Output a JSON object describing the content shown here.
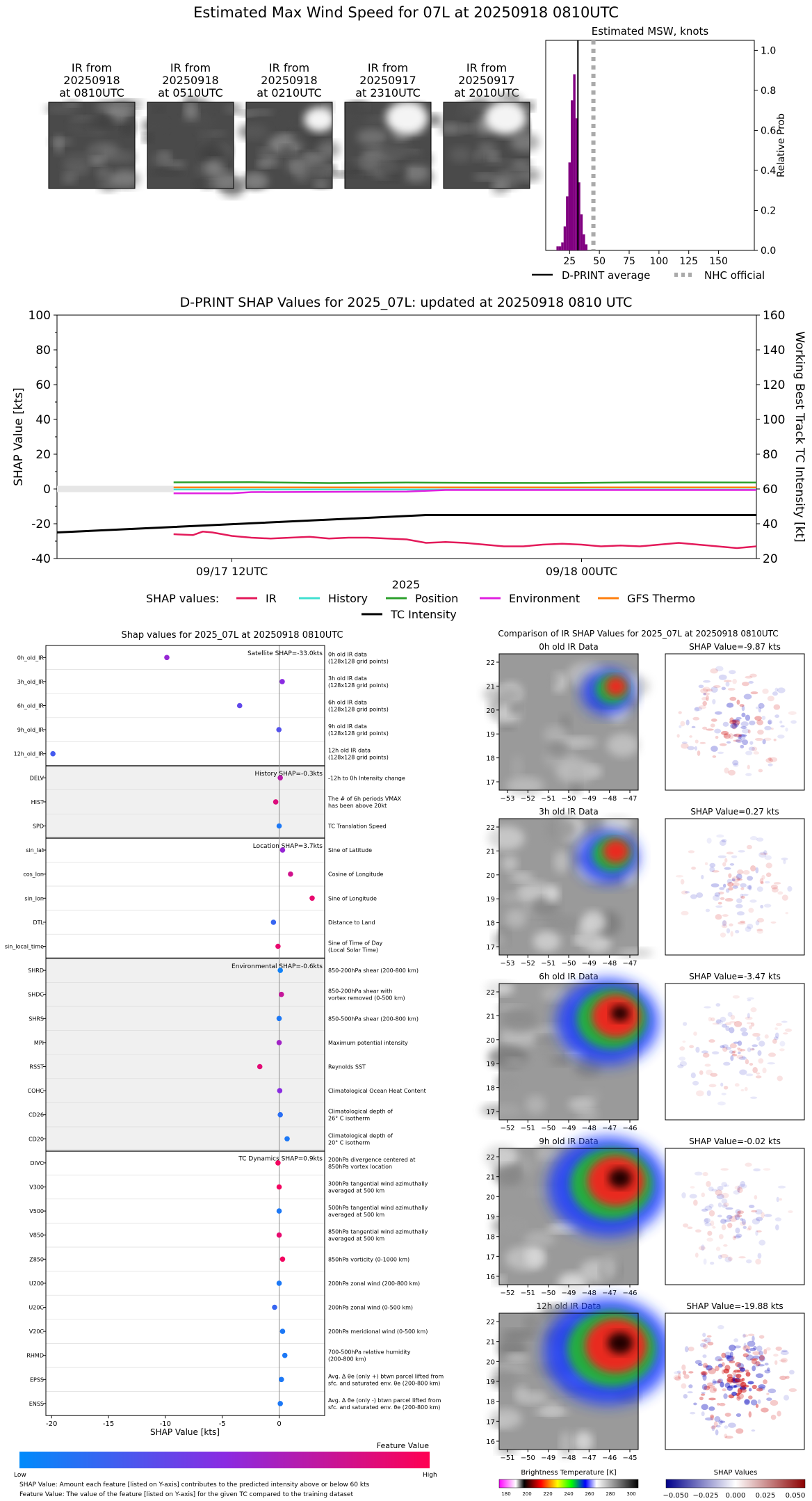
{
  "page_title": "Estimated Max Wind Speed for 07L at 20250918 0810UTC",
  "ir_thumbnails": [
    {
      "line1": "IR from",
      "line2": "20250918",
      "line3": "at 0810UTC"
    },
    {
      "line1": "IR from",
      "line2": "20250918",
      "line3": "at 0510UTC"
    },
    {
      "line1": "IR from",
      "line2": "20250918",
      "line3": "at 0210UTC"
    },
    {
      "line1": "IR from",
      "line2": "20250917",
      "line3": "at 2310UTC"
    },
    {
      "line1": "IR from",
      "line2": "20250917",
      "line3": "at 2010UTC"
    }
  ],
  "colors": {
    "msw_bar": "#800080",
    "nhc": "#aaaaaa",
    "ir": "#e31a5a",
    "history": "#40e0d0",
    "position": "#2ca02c",
    "environment": "#e020e0",
    "gfs_thermo": "#ff7f0e",
    "tc_intensity": "#000000",
    "low": "#1e90ff",
    "mid": "#8a2be2",
    "high": "#ff1060",
    "shade": "#f0f0f0"
  },
  "chart_data": [
    {
      "type": "bar",
      "title": "Estimated MSW, knots",
      "xlabel": "",
      "ylabel": "Relative Prob",
      "xlim": [
        5,
        180
      ],
      "ylim": [
        0,
        1.05
      ],
      "x_ticks": [
        "25",
        "50",
        "75",
        "100",
        "125",
        "150"
      ],
      "y_ticks": [
        "0.0",
        "0.2",
        "0.4",
        "0.6",
        "0.8",
        "1.0"
      ],
      "bins": [
        15,
        17,
        19,
        21,
        23,
        25,
        27,
        29,
        31,
        33,
        35,
        37,
        39
      ],
      "values": [
        0.02,
        0.02,
        0.04,
        0.12,
        0.27,
        0.44,
        0.75,
        0.88,
        0.66,
        0.34,
        0.18,
        0.08,
        0.03
      ],
      "dprint_average": 32,
      "nhc_official": 45,
      "legend": {
        "dprint": "D-PRINT average",
        "nhc": "NHC official"
      }
    },
    {
      "type": "line",
      "title": "D-PRINT SHAP Values for 2025_07L: updated at 20250918 0810 UTC",
      "xlabel": "2025",
      "ylabel": "SHAP Value [kts]",
      "ylabel_right": "Working Best Track TC Intensity [kt]",
      "x_hours": [
        0,
        36
      ],
      "ylim": [
        -40,
        100
      ],
      "ylim_right": [
        20,
        160
      ],
      "y_ticks": [
        "-40",
        "-20",
        "0",
        "20",
        "40",
        "60",
        "80",
        "100"
      ],
      "y_ticks_right": [
        "20",
        "40",
        "60",
        "80",
        "100",
        "120",
        "140",
        "160"
      ],
      "x_ticks": [
        {
          "label": "09/17 12UTC",
          "t": 9
        },
        {
          "label": "09/18 00UTC",
          "t": 27
        }
      ],
      "shap_start": 6,
      "legend_label": "SHAP values:",
      "series": [
        {
          "name": "IR",
          "x": [
            6,
            7,
            7.5,
            8,
            9,
            10,
            11,
            12,
            13,
            14,
            15,
            16,
            17,
            18,
            19,
            20,
            21,
            22,
            23,
            24,
            25,
            26,
            27,
            28,
            29,
            30,
            31,
            32,
            33,
            34,
            35,
            36
          ],
          "values": [
            -26,
            -26.5,
            -24.5,
            -25,
            -27,
            -28,
            -28.5,
            -28,
            -27.5,
            -28.5,
            -28,
            -28,
            -28.5,
            -29,
            -31,
            -30.5,
            -31,
            -32,
            -33,
            -33,
            -32,
            -31.5,
            -32,
            -33,
            -32.5,
            -33,
            -32,
            -31,
            -32,
            -33,
            -34,
            -33
          ]
        },
        {
          "name": "History",
          "x": [
            6,
            36
          ],
          "values": [
            -0.3,
            -0.3
          ]
        },
        {
          "name": "Position",
          "x": [
            6,
            10,
            14,
            18,
            22,
            26,
            30,
            36
          ],
          "values": [
            3.8,
            3.9,
            3.4,
            3.7,
            3.5,
            3.4,
            3.8,
            3.7
          ]
        },
        {
          "name": "Environment",
          "x": [
            6,
            9,
            10,
            18,
            20,
            36
          ],
          "values": [
            -2.5,
            -2.5,
            -1.8,
            -1.5,
            -0.6,
            -0.6
          ]
        },
        {
          "name": "GFS Thermo",
          "x": [
            6,
            36
          ],
          "values": [
            0.9,
            0.9
          ]
        },
        {
          "name": "TC Intensity",
          "axis": "right",
          "x": [
            0,
            19,
            36
          ],
          "values": [
            35,
            45,
            45
          ]
        }
      ]
    },
    {
      "type": "scatter",
      "title": "Shap values for 2025_07L at 20250918 0810UTC",
      "xlabel": "SHAP Value [kts]",
      "xlim": [
        -20.5,
        4
      ],
      "x_ticks": [
        "-20",
        "-15",
        "-10",
        "-5",
        "0"
      ],
      "groups": [
        {
          "label": "Satellite SHAP=-33.0kts",
          "start": 0,
          "count": 5,
          "shaded": false
        },
        {
          "label": "History SHAP=-0.3kts",
          "start": 5,
          "count": 3,
          "shaded": true
        },
        {
          "label": "Location SHAP=3.7kts",
          "start": 8,
          "count": 5,
          "shaded": false
        },
        {
          "label": "Environmental SHAP=-0.6kts",
          "start": 13,
          "count": 8,
          "shaded": true
        },
        {
          "label": "TC Dynamics SHAP=0.9kts",
          "start": 21,
          "count": 11,
          "shaded": false
        }
      ],
      "features": [
        {
          "name": "0h_old_IR",
          "desc1": "0h old IR data",
          "desc2": "(128x128 grid points)",
          "shap": -9.87,
          "fv": 0.55
        },
        {
          "name": "3h_old_IR",
          "desc1": "3h old IR data",
          "desc2": "(128x128 grid points)",
          "shap": 0.27,
          "fv": 0.5
        },
        {
          "name": "6h_old_IR",
          "desc1": "6h old IR data",
          "desc2": "(128x128 grid points)",
          "shap": -3.47,
          "fv": 0.35
        },
        {
          "name": "9h_old_IR",
          "desc1": "9h old IR data",
          "desc2": "(128x128 grid points)",
          "shap": -0.02,
          "fv": 0.3
        },
        {
          "name": "12h_old_IR",
          "desc1": "12h old IR data",
          "desc2": "(128x128 grid points)",
          "shap": -19.88,
          "fv": 0.25
        },
        {
          "name": "DELV",
          "desc1": "-12h to 0h Intensity change",
          "desc2": "",
          "shap": 0.1,
          "fv": 0.7
        },
        {
          "name": "HIST",
          "desc1": "The # of 6h periods VMAX",
          "desc2": "has been above 20kt",
          "shap": -0.3,
          "fv": 0.85
        },
        {
          "name": "SPD",
          "desc1": "TC Translation Speed",
          "desc2": "",
          "shap": 0.0,
          "fv": 0.1
        },
        {
          "name": "sin_lat",
          "desc1": "Sine of Latitude",
          "desc2": "",
          "shap": 0.3,
          "fv": 0.55
        },
        {
          "name": "cos_lon",
          "desc1": "Cosine of Longitude",
          "desc2": "",
          "shap": 1.0,
          "fv": 0.8
        },
        {
          "name": "sin_lon",
          "desc1": "Sine of Longitude",
          "desc2": "",
          "shap": 2.9,
          "fv": 0.9
        },
        {
          "name": "DTL",
          "desc1": "Distance to Land",
          "desc2": "",
          "shap": -0.5,
          "fv": 0.2
        },
        {
          "name": "sin_local_time",
          "desc1": "Sine of Time of Day",
          "desc2": "(Local Solar Time)",
          "shap": -0.1,
          "fv": 0.9
        },
        {
          "name": "SHRD",
          "desc1": "850-200hPa shear (200-800 km)",
          "desc2": "",
          "shap": 0.1,
          "fv": 0.05
        },
        {
          "name": "SHDC",
          "desc1": "850-200hPa shear with",
          "desc2": "vortex removed (0-500 km)",
          "shap": 0.2,
          "fv": 0.75
        },
        {
          "name": "SHRS",
          "desc1": "850-500hPa shear (200-800 km)",
          "desc2": "",
          "shap": 0.0,
          "fv": 0.1
        },
        {
          "name": "MPI",
          "desc1": "Maximum potential intensity",
          "desc2": "",
          "shap": 0.0,
          "fv": 0.6
        },
        {
          "name": "RSST",
          "desc1": "Reynolds SST",
          "desc2": "",
          "shap": -1.7,
          "fv": 0.88
        },
        {
          "name": "COHC",
          "desc1": "Climatological Ocean Heat Content",
          "desc2": "",
          "shap": 0.05,
          "fv": 0.5
        },
        {
          "name": "CD26",
          "desc1": "Climatological depth of",
          "desc2": "26° C isotherm",
          "shap": 0.1,
          "fv": 0.15
        },
        {
          "name": "CD20",
          "desc1": "Climatological depth of",
          "desc2": "20° C isotherm",
          "shap": 0.7,
          "fv": 0.1
        },
        {
          "name": "DIVC",
          "desc1": "200hPa divergence centered at",
          "desc2": "850hPa vortex location",
          "shap": -0.1,
          "fv": 0.95
        },
        {
          "name": "V300",
          "desc1": "300hPa tangential wind azimuthally",
          "desc2": "averaged at 500 km",
          "shap": 0.0,
          "fv": 0.95
        },
        {
          "name": "V500",
          "desc1": "500hPa tangential wind azimuthally",
          "desc2": "averaged at 500 km",
          "shap": 0.0,
          "fv": 0.1
        },
        {
          "name": "V850",
          "desc1": "850hPa tangential wind azimuthally",
          "desc2": "averaged at 500 km",
          "shap": 0.0,
          "fv": 0.9
        },
        {
          "name": "Z850",
          "desc1": "850hPa vorticity (0-1000 km)",
          "desc2": "",
          "shap": 0.3,
          "fv": 0.95
        },
        {
          "name": "U200",
          "desc1": "200hPa zonal wind (200-800 km)",
          "desc2": "",
          "shap": 0.0,
          "fv": 0.1
        },
        {
          "name": "U20C",
          "desc1": "200hPa zonal wind (0-500 km)",
          "desc2": "",
          "shap": -0.4,
          "fv": 0.2
        },
        {
          "name": "V20C",
          "desc1": "200hPa meridional wind (0-500 km)",
          "desc2": "",
          "shap": 0.3,
          "fv": 0.1
        },
        {
          "name": "RHMD",
          "desc1": "700-500hPa relative humidity",
          "desc2": "(200-800 km)",
          "shap": 0.5,
          "fv": 0.1
        },
        {
          "name": "EPSS",
          "desc1": "Avg. Δ θe (only +) btwn parcel lifted from",
          "desc2": "sfc. and saturated env. θe (200-800 km)",
          "shap": 0.2,
          "fv": 0.1
        },
        {
          "name": "ENSS",
          "desc1": "Avg. Δ θe (only -) btwn parcel lifted from",
          "desc2": "sfc. and saturated env. θe (200-800 km)",
          "shap": 0.1,
          "fv": 0.1
        }
      ],
      "colorbar": {
        "title": "Feature Value",
        "low": "Low",
        "high": "High"
      },
      "footnotes": [
        "SHAP Value: Amount each feature [listed on Y-axis] contributes to the predicted intensity above or below 60 kts",
        "Feature Value: The value of the feature [listed on Y-axis] for the given TC compared to the training dataset"
      ]
    },
    {
      "type": "heatmap",
      "title": "Comparison of IR SHAP Values for 2025_07L at 20250918 0810UTC",
      "rows": [
        {
          "ir_title": "0h old IR Data",
          "shap_title": "SHAP Value=-9.87 kts",
          "lon": [
            "−53",
            "−52",
            "−51",
            "−50",
            "−49",
            "−48",
            "−47"
          ],
          "lat": [
            "22",
            "21",
            "20",
            "19",
            "18",
            "17"
          ],
          "cold_cloud": 0.15,
          "shap_intensity": 0.55
        },
        {
          "ir_title": "3h old IR Data",
          "shap_title": "SHAP Value=0.27 kts",
          "lon": [
            "−53",
            "−52",
            "−51",
            "−50",
            "−49",
            "−48",
            "−47"
          ],
          "lat": [
            "22",
            "21",
            "20",
            "19",
            "18",
            "17"
          ],
          "cold_cloud": 0.2,
          "shap_intensity": 0.35
        },
        {
          "ir_title": "6h old IR Data",
          "shap_title": "SHAP Value=-3.47 kts",
          "lon": [
            "−52",
            "−51",
            "−50",
            "−49",
            "−48",
            "−47",
            "−46"
          ],
          "lat": [
            "22",
            "21",
            "20",
            "19",
            "18",
            "17"
          ],
          "cold_cloud": 0.45,
          "shap_intensity": 0.35
        },
        {
          "ir_title": "9h old IR Data",
          "shap_title": "SHAP Value=-0.02 kts",
          "lon": [
            "−52",
            "−51",
            "−50",
            "−49",
            "−48",
            "−47",
            "−46"
          ],
          "lat": [
            "22",
            "21",
            "20",
            "19",
            "18",
            "17",
            "16"
          ],
          "cold_cloud": 0.55,
          "shap_intensity": 0.3
        },
        {
          "ir_title": "12h old IR Data",
          "shap_title": "SHAP Value=-19.88 kts",
          "lon": [
            "−51",
            "−50",
            "−49",
            "−48",
            "−47",
            "−46",
            "−45"
          ],
          "lat": [
            "22",
            "21",
            "20",
            "19",
            "18",
            "17",
            "16"
          ],
          "cold_cloud": 0.6,
          "shap_intensity": 1.0
        }
      ],
      "bt_colorbar": {
        "title": "Brightness Temperature [K]",
        "ticks": [
          "180",
          "200",
          "220",
          "240",
          "260",
          "280",
          "300"
        ]
      },
      "shap_colorbar": {
        "title": "SHAP Values",
        "ticks": [
          "−0.050",
          "−0.025",
          "0.000",
          "0.025",
          "0.050"
        ]
      }
    }
  ]
}
